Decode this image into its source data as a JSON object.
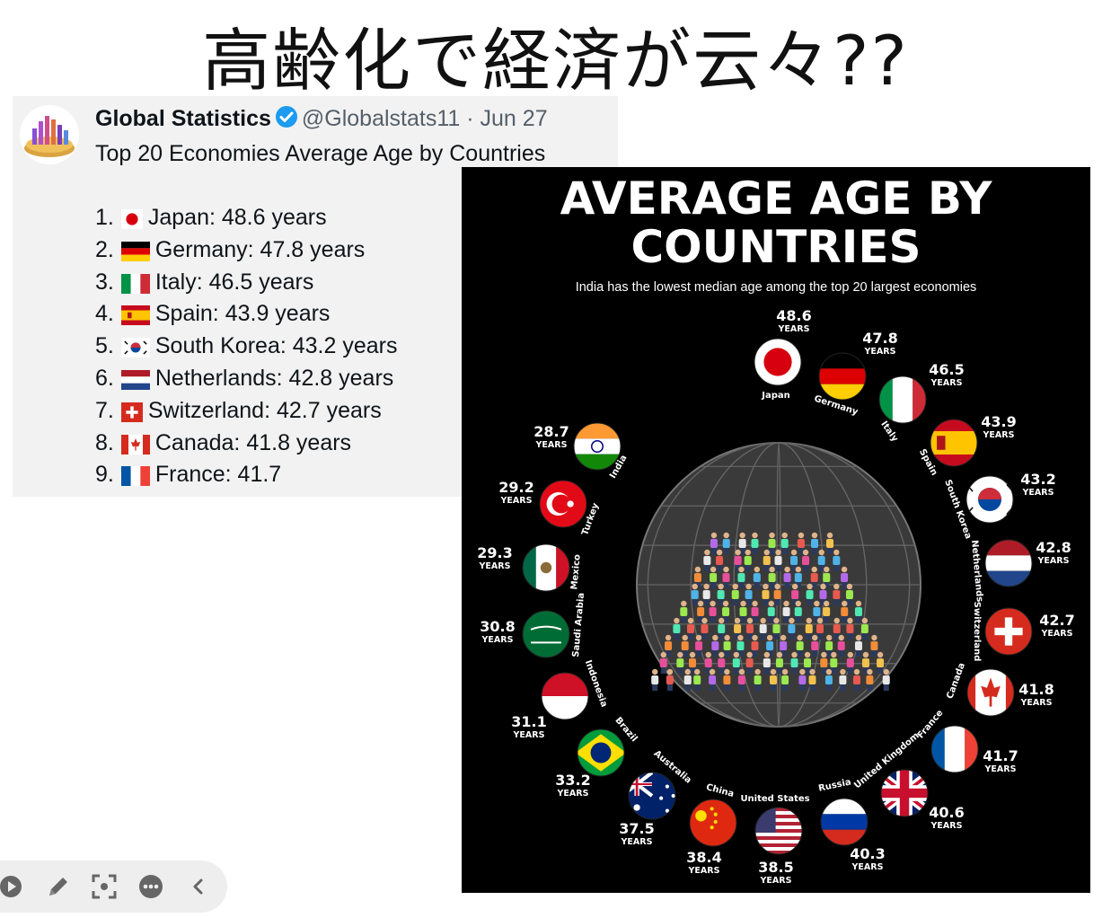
{
  "slide": {
    "title": "高齢化で経済が云々??"
  },
  "tweet": {
    "account_name": "Global Statistics",
    "handle": "@Globalstats11",
    "separator": "·",
    "date": "Jun 27",
    "text": "Top 20 Economies Average Age by Countries",
    "items": [
      {
        "rank": "1.",
        "flag_icon": "japan-flag-icon",
        "text": "Japan: 48.6 years"
      },
      {
        "rank": "2.",
        "flag_icon": "germany-flag-icon",
        "text": "Germany: 47.8 years"
      },
      {
        "rank": "3.",
        "flag_icon": "italy-flag-icon",
        "text": "Italy: 46.5 years"
      },
      {
        "rank": "4.",
        "flag_icon": "spain-flag-icon",
        "text": "Spain: 43.9 years"
      },
      {
        "rank": "5.",
        "flag_icon": "south-korea-flag-icon",
        "text": "South Korea: 43.2 years"
      },
      {
        "rank": "6.",
        "flag_icon": "netherlands-flag-icon",
        "text": "Netherlands: 42.8 years"
      },
      {
        "rank": "7.",
        "flag_icon": "switzerland-flag-icon",
        "text": "Switzerland: 42.7 years"
      },
      {
        "rank": "8.",
        "flag_icon": "canada-flag-icon",
        "text": "Canada: 41.8 years"
      },
      {
        "rank": "9.",
        "flag_icon": "france-flag-icon",
        "text": "France: 41.7"
      }
    ]
  },
  "infographic": {
    "title_line1": "AVERAGE AGE BY",
    "title_line2": "COUNTRIES",
    "subtitle": "India has the lowest median age among the top 20 largest economies",
    "unit": "YEARS",
    "countries": [
      {
        "name": "Japan",
        "age": "48.6"
      },
      {
        "name": "Germany",
        "age": "47.8"
      },
      {
        "name": "Italy",
        "age": "46.5"
      },
      {
        "name": "Spain",
        "age": "43.9"
      },
      {
        "name": "South Korea",
        "age": "43.2"
      },
      {
        "name": "Netherlands",
        "age": "42.8"
      },
      {
        "name": "Switzerland",
        "age": "42.7"
      },
      {
        "name": "Canada",
        "age": "41.8"
      },
      {
        "name": "France",
        "age": "41.7"
      },
      {
        "name": "United Kingdom",
        "age": "40.6"
      },
      {
        "name": "Russia",
        "age": "40.3"
      },
      {
        "name": "United States",
        "age": "38.5"
      },
      {
        "name": "China",
        "age": "38.4"
      },
      {
        "name": "Australia",
        "age": "37.5"
      },
      {
        "name": "Brazil",
        "age": "33.2"
      },
      {
        "name": "Indonesia",
        "age": "31.1"
      },
      {
        "name": "Saudi Arabia",
        "age": "30.8"
      },
      {
        "name": "Mexico",
        "age": "29.3"
      },
      {
        "name": "Turkey",
        "age": "29.2"
      },
      {
        "name": "India",
        "age": "28.7"
      }
    ]
  },
  "toolbar": {
    "icons": [
      "play-icon",
      "pen-icon",
      "focus-icon",
      "more-icon",
      "chevron-left-icon"
    ]
  },
  "colors": {
    "verified": "#1d9bf0",
    "tweet_background": "#f2f2f2",
    "infographic_background": "#000000"
  }
}
